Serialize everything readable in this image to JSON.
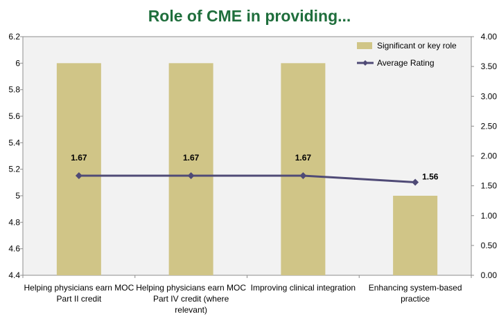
{
  "chart_data": {
    "type": "bar",
    "title": "Role of CME in providing...",
    "categories": [
      [
        "Helping physicians earn MOC",
        "Part II credit"
      ],
      [
        "Helping physicians earn MOC",
        "Part IV credit (where",
        "relevant)"
      ],
      [
        "Improving clinical integration"
      ],
      [
        "Enhancing system-based",
        "practice"
      ]
    ],
    "series": [
      {
        "name": "Significant or key role",
        "type": "bar",
        "axis": "left",
        "color": "#d0c587",
        "values": [
          6,
          6,
          6,
          5
        ]
      },
      {
        "name": "Average Rating",
        "type": "line",
        "axis": "right",
        "color": "#4f4a76",
        "marker": "diamond",
        "values": [
          1.67,
          1.67,
          1.67,
          1.56
        ],
        "labels": [
          "1.67",
          "1.67",
          "1.67",
          "1.56"
        ]
      }
    ],
    "y_left": {
      "min": 4.4,
      "max": 6.2,
      "step": 0.2,
      "ticks": [
        "4.4",
        "4.6",
        "4.8",
        "5",
        "5.2",
        "5.4",
        "5.6",
        "5.8",
        "6",
        "6.2"
      ]
    },
    "y_right": {
      "min": 0,
      "max": 4,
      "step": 0.5,
      "ticks": [
        "0.00",
        "0.50",
        "1.00",
        "1.50",
        "2.00",
        "2.50",
        "3.00",
        "3.50",
        "4.00"
      ]
    },
    "grid": false,
    "legend_position": "top-right",
    "plot_background": "#f2f2f2"
  }
}
